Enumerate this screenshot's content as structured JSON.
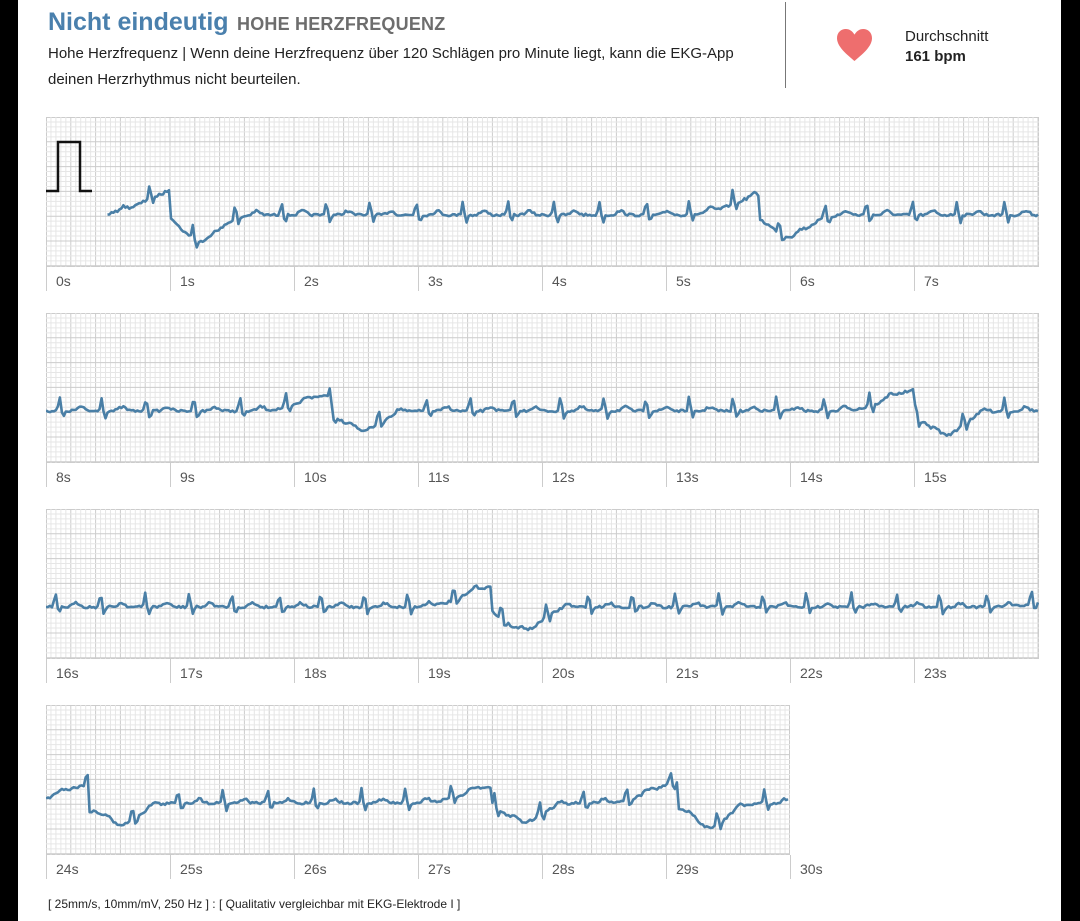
{
  "header": {
    "verdict": "Nicht eindeutig",
    "subtitle": "HOHE HERZFREQUENZ",
    "description": "Hohe Herzfrequenz | Wenn deine Herzfrequenz über 120 Schlägen pro Minute liegt, kann die EKG-App deinen Herzrhythmus nicht beurteilen.",
    "average_label": "Durchschnitt",
    "average_value": "161 bpm",
    "icon": "heart-icon"
  },
  "ecg": {
    "seconds_per_strip": 8,
    "total_seconds": 30,
    "strips": [
      {
        "start": 0,
        "ticks": [
          "0s",
          "1s",
          "2s",
          "3s",
          "4s",
          "5s",
          "6s",
          "7s"
        ]
      },
      {
        "start": 8,
        "ticks": [
          "8s",
          "9s",
          "10s",
          "11s",
          "12s",
          "13s",
          "14s",
          "15s"
        ]
      },
      {
        "start": 16,
        "ticks": [
          "16s",
          "17s",
          "18s",
          "19s",
          "20s",
          "21s",
          "22s",
          "23s"
        ]
      },
      {
        "start": 24,
        "ticks": [
          "24s",
          "25s",
          "26s",
          "27s",
          "28s",
          "29s",
          "30s"
        ]
      }
    ]
  },
  "footer": {
    "text": "[ 25mm/s, 10mm/mV, 250 Hz ] : [ Qualitativ vergleichbar mit EKG-Elektrode I ]"
  },
  "colors": {
    "trace": "#4a7fa6",
    "accent": "#4a80ad",
    "heart": "#ee6e6e",
    "grid_minor": "#e6e6e6",
    "grid_major": "#cccccc"
  }
}
